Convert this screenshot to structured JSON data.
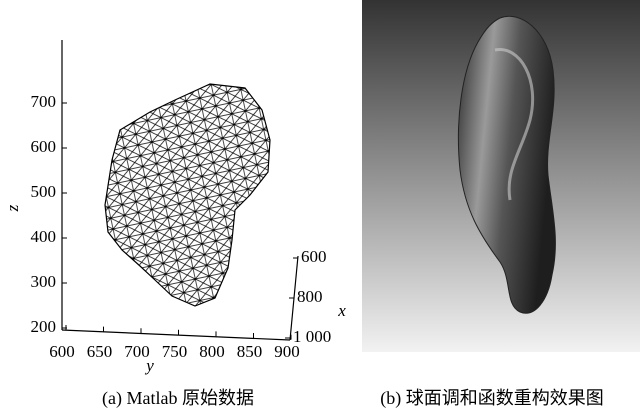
{
  "panels": [
    {
      "caption": "(a) Matlab 原始数据",
      "z_label": "z",
      "z_ticks": [
        "200",
        "300",
        "400",
        "500",
        "600",
        "700"
      ],
      "y_label": "y",
      "y_ticks": [
        "600",
        "650",
        "700",
        "750",
        "800",
        "850",
        "900"
      ],
      "x_label": "x",
      "x_ticks": [
        "600",
        "800",
        "1 000"
      ]
    },
    {
      "caption": "(b) 球面调和函数重构效果图"
    }
  ]
}
